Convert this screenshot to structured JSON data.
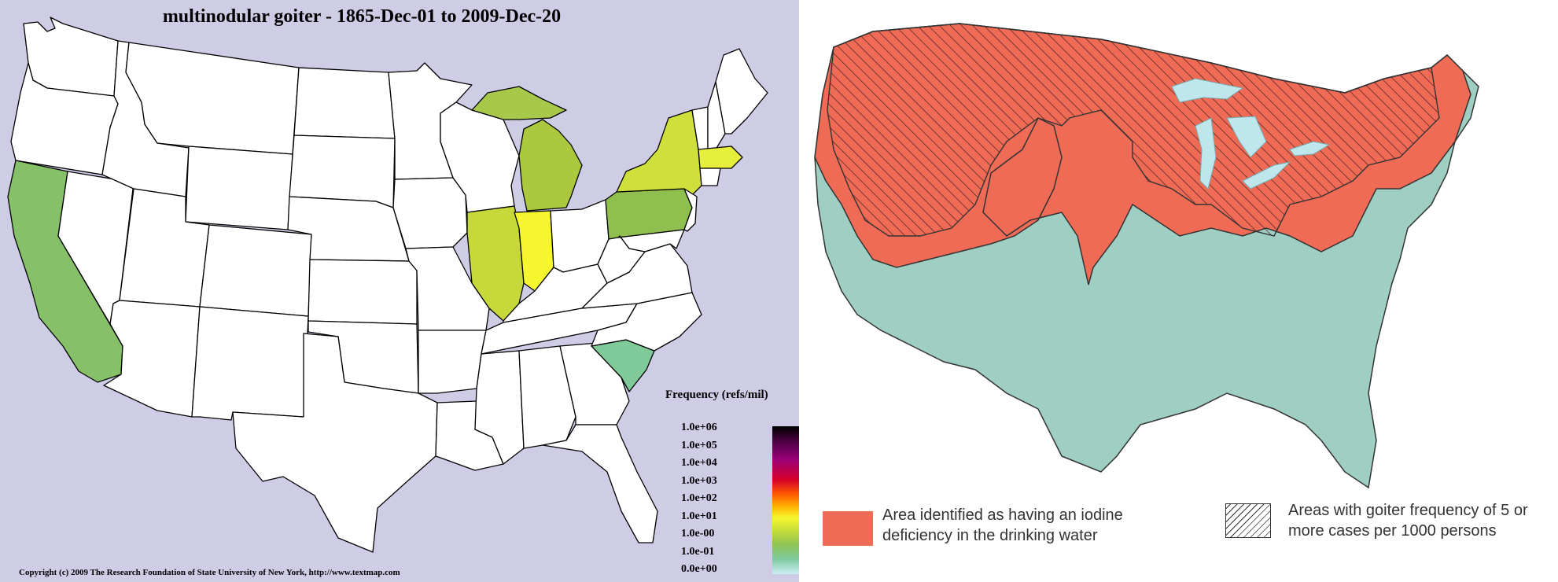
{
  "left_map": {
    "title": "multinodular goiter - 1865-Dec-01 to 2009-Dec-20",
    "legend_title": "Frequency (refs/mil)",
    "legend_ticks": [
      "1.0e+06",
      "1.0e+05",
      "1.0e+04",
      "1.0e+03",
      "1.0e+02",
      "1.0e+01",
      "1.0e-00",
      "1.0e-01",
      "0.0e+00"
    ],
    "copyright": "Copyright (c) 2009 The Research Foundation of State University of New York, http://www.textmap.com",
    "colors": {
      "background": "#cfcde6",
      "california": "#86c069",
      "illinois": "#c6d83a",
      "indiana": "#f6f62e",
      "michigan": "#acc83f",
      "wisconsin_north": "#a8c84a",
      "new_york": "#cfe03c",
      "pennsylvania": "#8fbf4f",
      "massachusetts": "#e6ef3c",
      "south_carolina": "#7fca98"
    }
  },
  "right_map": {
    "legend_iodine": "Area identified as having an iodine deficiency in the drinking water",
    "legend_goiter": "Areas with goiter frequency of 5 or more cases per 1000 persons",
    "colors": {
      "iodine_deficiency": "#ef6b55",
      "rest": "#9fcfc3",
      "lakes": "#bfe6ec"
    }
  }
}
